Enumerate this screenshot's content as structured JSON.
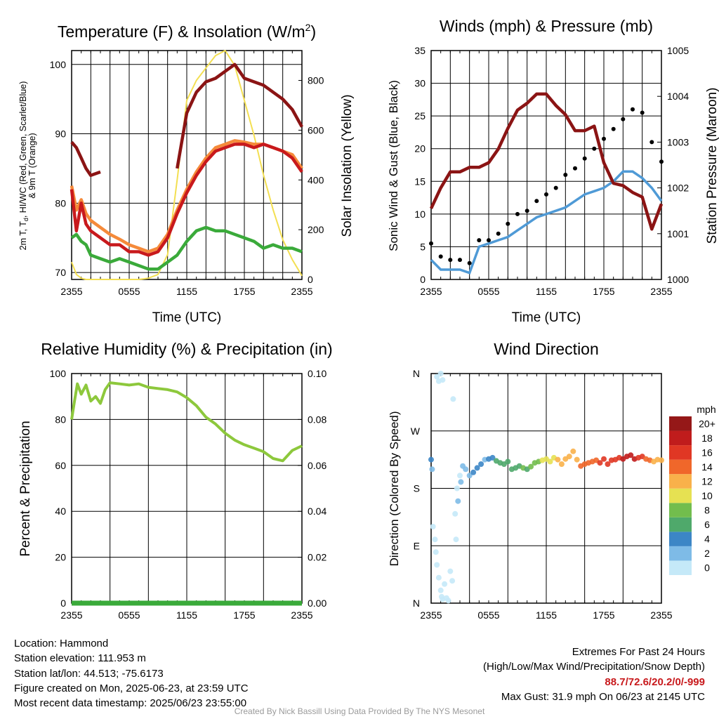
{
  "colors": {
    "temp": "#c8191c",
    "heat_index": "#f58a3a",
    "dewpoint": "#3aaa3a",
    "temp_9m": "#8b1414",
    "insolation": "#f3df52",
    "wind": "#4f9ad6",
    "gust": "#000000",
    "pressure": "#8b1414",
    "rh": "#8dc83c",
    "precip": "#3aaa3a"
  },
  "chart_data": [
    {
      "id": "temp",
      "type": "line",
      "title": "Temperature (F) & Insolation (W/m²)",
      "xlabel": "Time (UTC)",
      "ylabel": [
        "2m T, Td, HI/WC (Red, Green, Scarlet/Blue)",
        "& 9m T (Orange)"
      ],
      "y2label": "Solar Insolation (Yellow)",
      "x_ticks": [
        "2355",
        "0555",
        "1155",
        "1755",
        "2355"
      ],
      "ylim": [
        69,
        102
      ],
      "y_ticks": [
        70,
        80,
        90,
        100
      ],
      "y2lim": [
        0,
        920
      ],
      "y2_ticks": [
        0,
        200,
        400,
        600,
        800
      ],
      "grid": true,
      "x_hours": [
        0,
        0.5,
        1,
        1.5,
        2,
        3,
        4,
        5,
        6,
        7,
        8,
        9,
        10,
        11,
        12,
        13,
        14,
        15,
        16,
        17,
        18,
        19,
        20,
        21,
        22,
        23,
        24
      ],
      "series": [
        {
          "key": "temp",
          "values": [
            82,
            76,
            80,
            77,
            76,
            75,
            74,
            74,
            73,
            73,
            72.5,
            73,
            75,
            78.5,
            81.5,
            84,
            86,
            87.5,
            88,
            88.5,
            88.5,
            88,
            88.5,
            88,
            87.5,
            86.5,
            84.5
          ]
        },
        {
          "key": "heat_index",
          "values": [
            82.5,
            79,
            80.5,
            78.5,
            77.5,
            76.5,
            75.5,
            74.8,
            74,
            73.5,
            73,
            73.5,
            75.5,
            79,
            82,
            84.5,
            86.5,
            88,
            88.5,
            89,
            88.8,
            88.5,
            88.5,
            88,
            87.5,
            87,
            85
          ]
        },
        {
          "key": "dewpoint",
          "values": [
            75,
            75.5,
            74.5,
            74,
            72.5,
            72,
            71.5,
            72,
            71.5,
            71,
            70.5,
            70.5,
            71.5,
            72.5,
            74.5,
            76,
            76.5,
            76,
            76,
            75.5,
            75,
            74.5,
            73.5,
            74,
            73.5,
            73.5,
            73
          ]
        },
        {
          "key": "temp_9m",
          "values": [
            88.8,
            88,
            86.5,
            85,
            84,
            84.5,
            null,
            null,
            null,
            null,
            null,
            null,
            null,
            85,
            93,
            96,
            97.5,
            98,
            99,
            100,
            98,
            97.5,
            97,
            96,
            95,
            93.5,
            91
          ]
        },
        {
          "key": "insolation",
          "axis": "y2",
          "values": [
            70,
            20,
            5,
            0,
            0,
            0,
            0,
            0,
            0,
            0,
            5,
            20,
            100,
            400,
            720,
            800,
            850,
            900,
            920,
            860,
            720,
            580,
            420,
            280,
            160,
            80,
            15
          ]
        }
      ]
    },
    {
      "id": "wind",
      "type": "line",
      "title": "Winds (mph) & Pressure (mb)",
      "xlabel": "Time (UTC)",
      "ylabel": "Sonic Wind & Gust (Blue, Black)",
      "y2label": "Station Pressure (Maroon)",
      "x_ticks": [
        "2355",
        "0555",
        "1155",
        "1755",
        "2355"
      ],
      "ylim": [
        0,
        35
      ],
      "y_ticks": [
        0,
        5,
        10,
        15,
        20,
        25,
        30,
        35
      ],
      "y2lim": [
        1000,
        1005
      ],
      "y2_ticks": [
        1000,
        1001,
        1002,
        1003,
        1004,
        1005
      ],
      "grid": true,
      "x_hours": [
        0,
        1,
        2,
        3,
        4,
        5,
        6,
        7,
        8,
        9,
        10,
        11,
        12,
        13,
        14,
        15,
        16,
        17,
        18,
        19,
        20,
        21,
        22,
        23,
        24
      ],
      "series": [
        {
          "key": "wind",
          "name": "Sonic Wind",
          "values": [
            3,
            1.5,
            1.5,
            1.5,
            1,
            5,
            5.5,
            6,
            6.5,
            7.5,
            8.5,
            9.5,
            10,
            10.5,
            11,
            12,
            13,
            13.5,
            14,
            15,
            16.5,
            16.5,
            15.5,
            14,
            12
          ]
        },
        {
          "key": "gust",
          "name": "Gust",
          "values": [
            5.5,
            3.5,
            3,
            3,
            2.5,
            6,
            6,
            7,
            8.5,
            10,
            10.5,
            12,
            13,
            14,
            16,
            17,
            18.5,
            20,
            21.5,
            23,
            24.5,
            26,
            25.5,
            21,
            18
          ]
        },
        {
          "key": "pressure",
          "name": "Station Pressure",
          "axis": "y2",
          "values": [
            1001.55,
            1002.0,
            1002.35,
            1002.35,
            1002.45,
            1002.45,
            1002.55,
            1002.85,
            1003.3,
            1003.7,
            1003.85,
            1004.05,
            1004.05,
            1003.8,
            1003.6,
            1003.25,
            1003.25,
            1003.35,
            1002.55,
            1002.1,
            1002.05,
            1001.9,
            1001.8,
            1001.1,
            1001.65
          ]
        }
      ]
    },
    {
      "id": "rh",
      "type": "line",
      "title": "Relative Humidity (%) & Precipitation (in)",
      "ylabel": "Percent & Precipitation",
      "x_ticks": [
        "2355",
        "0555",
        "1155",
        "1755",
        "2355"
      ],
      "ylim": [
        0,
        100
      ],
      "y_ticks": [
        0,
        20,
        40,
        60,
        80,
        100
      ],
      "y2lim": [
        0,
        0.1
      ],
      "y2_ticks": [
        "0.00",
        "0.02",
        "0.04",
        "0.06",
        "0.08",
        "0.10"
      ],
      "grid": true,
      "x_hours": [
        0,
        0.3,
        0.6,
        1,
        1.5,
        2,
        2.5,
        3,
        3.5,
        4,
        5,
        6,
        7,
        8,
        9,
        10,
        11,
        12,
        13,
        14,
        15,
        16,
        17,
        18,
        19,
        20,
        21,
        22,
        23,
        24
      ],
      "series": [
        {
          "key": "rh",
          "values": [
            80,
            88,
            95.5,
            91,
            95,
            88,
            90,
            87,
            93,
            96,
            95.5,
            95,
            95.5,
            94,
            93.5,
            93,
            92,
            89.5,
            86,
            81,
            78,
            74,
            71,
            69,
            67.5,
            66,
            63,
            62,
            66.5,
            68.5
          ]
        },
        {
          "key": "precip",
          "axis": "y2",
          "values": [
            0,
            0,
            0,
            0,
            0,
            0,
            0,
            0,
            0,
            0,
            0,
            0,
            0,
            0,
            0,
            0,
            0,
            0,
            0,
            0,
            0,
            0,
            0,
            0,
            0,
            0,
            0,
            0,
            0,
            0
          ]
        }
      ]
    },
    {
      "id": "direction",
      "type": "scatter",
      "title": "Wind Direction",
      "ylabel": "Direction (Colored By Speed)",
      "x_ticks": [
        "2355",
        "0555",
        "1155",
        "1755",
        "2355"
      ],
      "y_ticks": [
        "N",
        "E",
        "S",
        "W",
        "N"
      ],
      "ylim": [
        0,
        360
      ],
      "grid": true,
      "colorbar_unit": "mph",
      "colorbar_labels": [
        "0",
        "2",
        "4",
        "6",
        "8",
        "10",
        "12",
        "14",
        "16",
        "18",
        "20+"
      ],
      "colorbar_colors": [
        "#c5e9f8",
        "#7ebbe7",
        "#3c86c6",
        "#4fa96b",
        "#72bd4d",
        "#e6e152",
        "#f9b14a",
        "#f0672a",
        "#e03724",
        "#c01c1c",
        "#951818"
      ],
      "points": [
        [
          0.0,
          225,
          4
        ],
        [
          0.1,
          210,
          3
        ],
        [
          0.4,
          100,
          1
        ],
        [
          0.5,
          80,
          1
        ],
        [
          0.6,
          60,
          1
        ],
        [
          0.8,
          40,
          1
        ],
        [
          1.0,
          20,
          0
        ],
        [
          1.1,
          10,
          1
        ],
        [
          1.2,
          6,
          1
        ],
        [
          1.4,
          30,
          1
        ],
        [
          1.6,
          8,
          1
        ],
        [
          1.8,
          4,
          0
        ],
        [
          2.0,
          50,
          1
        ],
        [
          2.2,
          35,
          0
        ],
        [
          0.6,
          355,
          1
        ],
        [
          0.8,
          348,
          1
        ],
        [
          1.0,
          360,
          0
        ],
        [
          1.2,
          350,
          1
        ],
        [
          2.3,
          320,
          1
        ],
        [
          0.2,
          120,
          1
        ],
        [
          2.5,
          140,
          1
        ],
        [
          2.6,
          100,
          1
        ],
        [
          2.7,
          180,
          1
        ],
        [
          2.8,
          160,
          2
        ],
        [
          3.0,
          200,
          1
        ],
        [
          3.1,
          190,
          2
        ],
        [
          3.3,
          215,
          2
        ],
        [
          3.6,
          210,
          3
        ],
        [
          4.0,
          200,
          3
        ],
        [
          4.4,
          205,
          4
        ],
        [
          4.8,
          212,
          4
        ],
        [
          5.2,
          218,
          4
        ],
        [
          5.6,
          225,
          3
        ],
        [
          6.0,
          226,
          4
        ],
        [
          6.4,
          228,
          5
        ],
        [
          6.8,
          223,
          6
        ],
        [
          7.2,
          220,
          6
        ],
        [
          7.6,
          218,
          7
        ],
        [
          8.0,
          222,
          6
        ],
        [
          8.4,
          210,
          6
        ],
        [
          8.8,
          212,
          7
        ],
        [
          9.2,
          215,
          7
        ],
        [
          9.6,
          212,
          8
        ],
        [
          10.0,
          210,
          7
        ],
        [
          10.4,
          214,
          8
        ],
        [
          10.8,
          220,
          9
        ],
        [
          11.2,
          222,
          9
        ],
        [
          11.6,
          224,
          10
        ],
        [
          12.0,
          226,
          11
        ],
        [
          12.4,
          222,
          10
        ],
        [
          12.8,
          228,
          11
        ],
        [
          13.2,
          225,
          12
        ],
        [
          13.6,
          218,
          12
        ],
        [
          14.0,
          226,
          13
        ],
        [
          14.4,
          230,
          12
        ],
        [
          14.8,
          238,
          13
        ],
        [
          15.2,
          225,
          13
        ],
        [
          15.6,
          215,
          14
        ],
        [
          16.0,
          218,
          14
        ],
        [
          16.4,
          220,
          15
        ],
        [
          16.8,
          222,
          15
        ],
        [
          17.2,
          224,
          15
        ],
        [
          17.6,
          220,
          16
        ],
        [
          18.0,
          226,
          16
        ],
        [
          18.4,
          218,
          16
        ],
        [
          18.8,
          224,
          17
        ],
        [
          19.2,
          225,
          17
        ],
        [
          19.6,
          228,
          17
        ],
        [
          20.0,
          226,
          18
        ],
        [
          20.4,
          230,
          18
        ],
        [
          20.8,
          232,
          19
        ],
        [
          21.2,
          226,
          18
        ],
        [
          21.6,
          228,
          17
        ],
        [
          22.0,
          230,
          16
        ],
        [
          22.4,
          226,
          15
        ],
        [
          22.8,
          224,
          14
        ],
        [
          23.2,
          222,
          13
        ],
        [
          23.6,
          225,
          12
        ],
        [
          24.0,
          224,
          12
        ]
      ]
    }
  ],
  "info_left": {
    "location": "Location: Hammond",
    "elevation": "Station elevation: 111.953 m",
    "latlon": "Station lat/lon: 44.513; -75.6173",
    "created": "Figure created on Mon, 2025-06-23, at 23:59 UTC",
    "recent": "Most recent data timestamp: 2025/06/23 23:55:00"
  },
  "info_right": {
    "title": "Extremes For Past 24 Hours",
    "subtitle": "(High/Low/Max Wind/Precipitation/Snow Depth)",
    "values": "88.7/72.6/20.2/0/-999",
    "gust": "Max Gust: 31.9 mph On 06/23 at 2145 UTC"
  },
  "credit": "Created By Nick Bassill Using Data Provided By The NYS Mesonet"
}
